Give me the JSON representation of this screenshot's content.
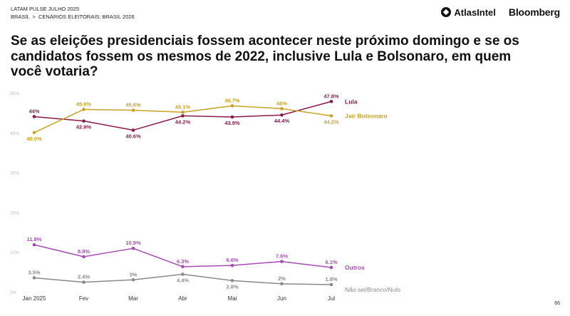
{
  "header": {
    "line1": "LATAM PULSE JULHO 2025",
    "crumb_a": "BRASIL",
    "crumb_sep": ">",
    "crumb_b": "CENÁRIOS ELEITORAIS: BRASIL 2026"
  },
  "logos": {
    "atlas": "AtlasIntel",
    "bloomberg": "Bloomberg"
  },
  "title": "Se as eleições presidenciais fossem acontecer neste próximo domingo e se os candidatos fossem os mesmos de 2022, inclusive Lula e Bolsonaro, em quem você votaria?",
  "page_number": "66",
  "chart_data": {
    "type": "line",
    "categories": [
      "Jan 2025",
      "Fev",
      "Mar",
      "Abr",
      "Mai",
      "Jun",
      "Jul"
    ],
    "ylim": [
      0,
      50
    ],
    "y_ticks": [
      0,
      10,
      20,
      30,
      40,
      50
    ],
    "y_tick_labels": [
      "0%",
      "10%",
      "20%",
      "30%",
      "40%",
      "50%"
    ],
    "grid": false,
    "series": [
      {
        "name": "Lula",
        "color": "#8b1a4a",
        "values": [
          44,
          42.9,
          40.6,
          44.2,
          43.9,
          44.4,
          47.8
        ],
        "labels": [
          "44%",
          "42.9%",
          "40.6%",
          "44.2%",
          "43.9%",
          "44.4%",
          "47.8%"
        ],
        "label_pos": [
          "above",
          "below",
          "below",
          "below",
          "below",
          "below",
          "above"
        ]
      },
      {
        "name": "Jair Bolsonaro",
        "color": "#c9a227",
        "values": [
          40,
          45.8,
          45.6,
          45.1,
          46.7,
          46,
          44.2
        ],
        "labels": [
          "40.0%",
          "45.8%",
          "45.6%",
          "45.1%",
          "46.7%",
          "46%",
          "44.2%"
        ],
        "label_pos": [
          "below",
          "above",
          "above",
          "above",
          "above",
          "above",
          "below"
        ]
      },
      {
        "name": "Outros",
        "color": "#a54db3",
        "values": [
          11.8,
          8.8,
          10.9,
          6.3,
          6.6,
          7.6,
          6.1
        ],
        "labels": [
          "11.8%",
          "8.8%",
          "10.9%",
          "6.3%",
          "6.6%",
          "7.6%",
          "6.1%"
        ],
        "label_pos": [
          "above",
          "above",
          "above",
          "above",
          "above",
          "above",
          "above"
        ]
      },
      {
        "name": "Não sei/Branco/Nulo",
        "color": "#8a8a8a",
        "values": [
          3.5,
          2.4,
          3,
          4.4,
          2.8,
          2,
          1.8
        ],
        "labels": [
          "3.5%",
          "2.4%",
          "3%",
          "4.4%",
          "2.8%",
          "2%",
          "1.8%"
        ],
        "label_pos": [
          "above",
          "above",
          "above",
          "below",
          "below",
          "above",
          "above"
        ]
      }
    ]
  }
}
